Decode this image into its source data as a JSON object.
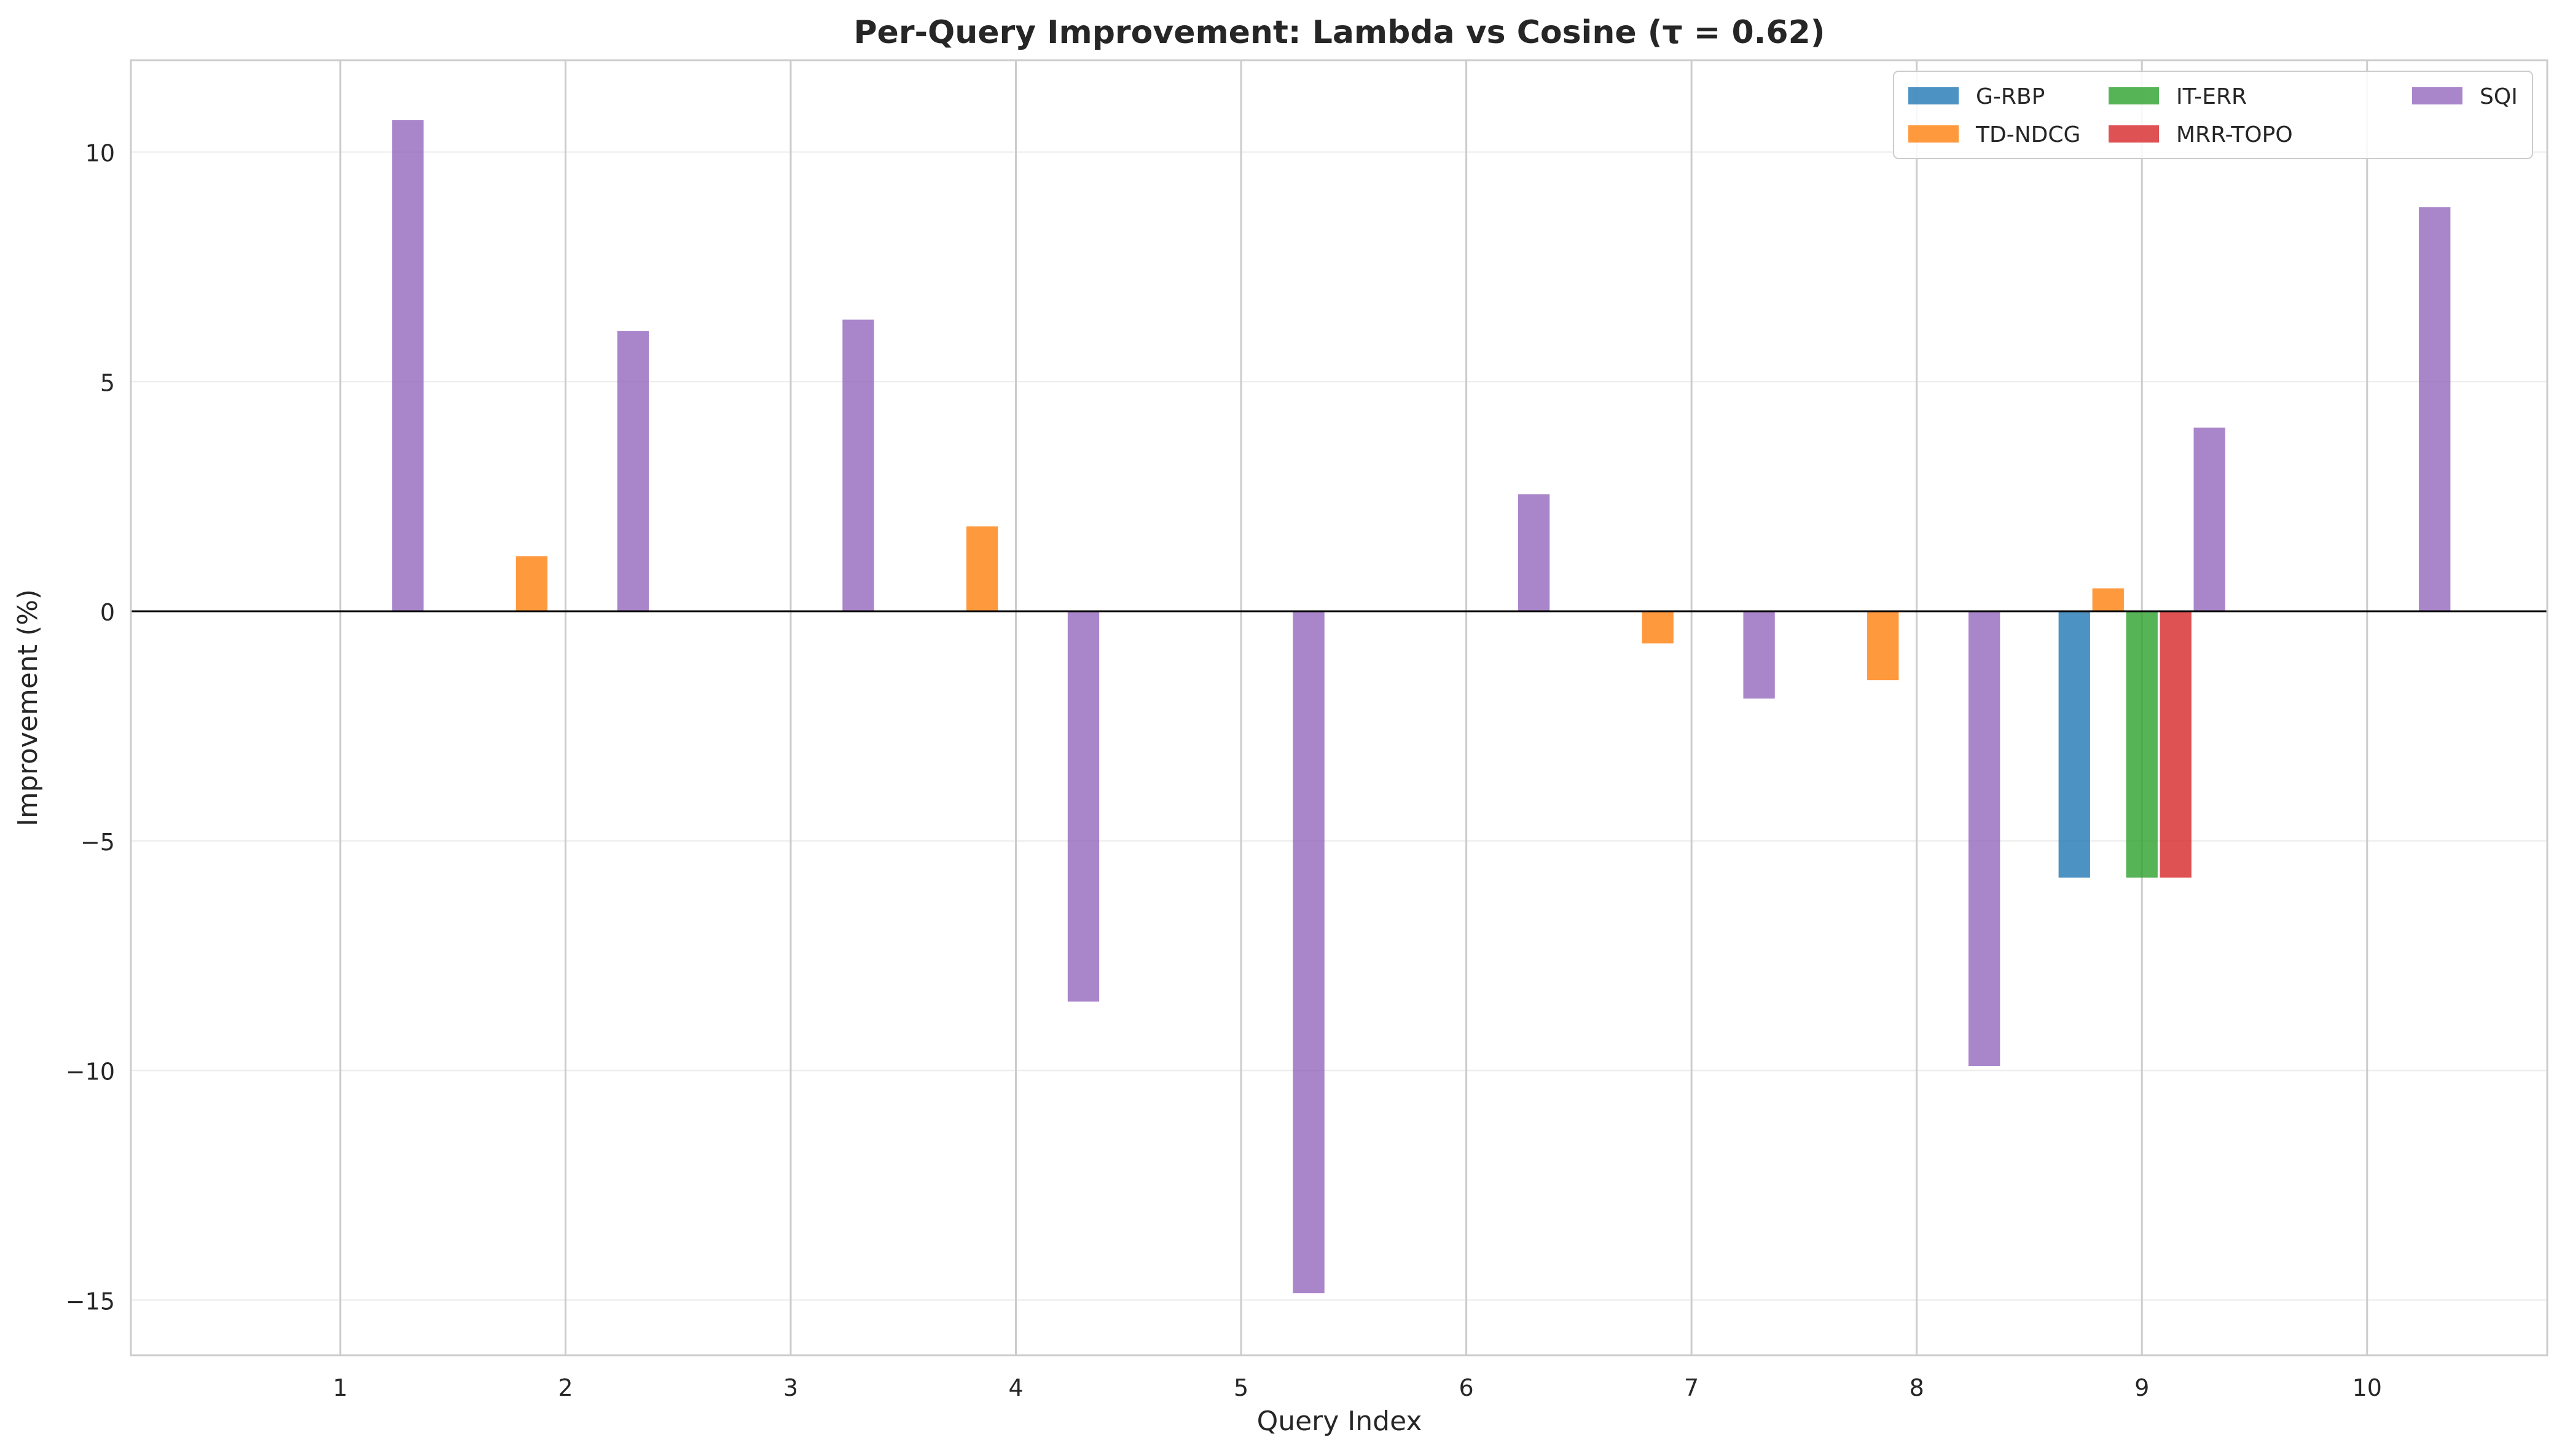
{
  "chart_data": {
    "type": "bar",
    "title": "Per-Query Improvement: Lambda vs Cosine (τ = 0.62)",
    "xlabel": "Query Index",
    "ylabel": "Improvement (%)",
    "categories": [
      "1",
      "2",
      "3",
      "4",
      "5",
      "6",
      "7",
      "8",
      "9",
      "10"
    ],
    "xlim": [
      0.07,
      10.8
    ],
    "ylim": [
      -16.2,
      12.0
    ],
    "yticks": [
      10,
      5,
      0,
      -5,
      -10,
      -15
    ],
    "ytick_labels": [
      "10",
      "5",
      "0",
      "−5",
      "−10",
      "−15"
    ],
    "grid": true,
    "legend": {
      "position": "top-right",
      "columns": 3
    },
    "series": [
      {
        "name": "G-RBP",
        "color": "#1f77b4",
        "values": [
          0,
          0,
          0,
          0,
          0,
          0,
          0,
          0,
          -5.8,
          0
        ]
      },
      {
        "name": "TD-NDCG",
        "color": "#ff7f0e",
        "values": [
          0,
          1.2,
          0,
          1.85,
          0,
          0,
          -0.7,
          -1.5,
          0.5,
          0
        ]
      },
      {
        "name": "IT-ERR",
        "color": "#2ca02c",
        "values": [
          0,
          0,
          0,
          0,
          0,
          0,
          0,
          0,
          -5.8,
          0
        ]
      },
      {
        "name": "MRR-TOPO",
        "color": "#d62728",
        "values": [
          0,
          0,
          0,
          0,
          0,
          0,
          0,
          0,
          -5.8,
          0
        ]
      },
      {
        "name": "SQI",
        "color": "#9467bd",
        "values": [
          10.7,
          6.1,
          6.35,
          -8.5,
          -14.85,
          2.55,
          -1.9,
          -9.9,
          4.0,
          8.8
        ]
      }
    ]
  }
}
